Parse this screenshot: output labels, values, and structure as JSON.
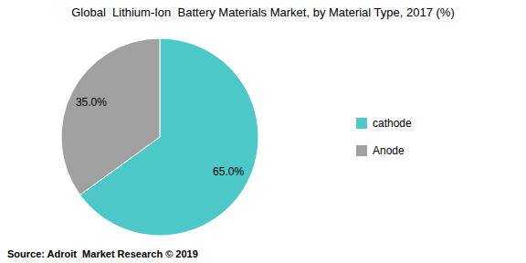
{
  "chart_data": {
    "type": "pie",
    "title": "Global  Lithium-Ion  Battery Materials Market, by Material Type, 2017 (%)",
    "categories": [
      "cathode",
      "Anode"
    ],
    "values": [
      65.0,
      35.0
    ],
    "value_labels": [
      "65.0%",
      "35.0%"
    ],
    "colors": [
      "#4dc8c8",
      "#a0a0a0"
    ],
    "data_labels": true,
    "legend": "right",
    "source": "Source: Adroit  Market Research © 2019"
  }
}
